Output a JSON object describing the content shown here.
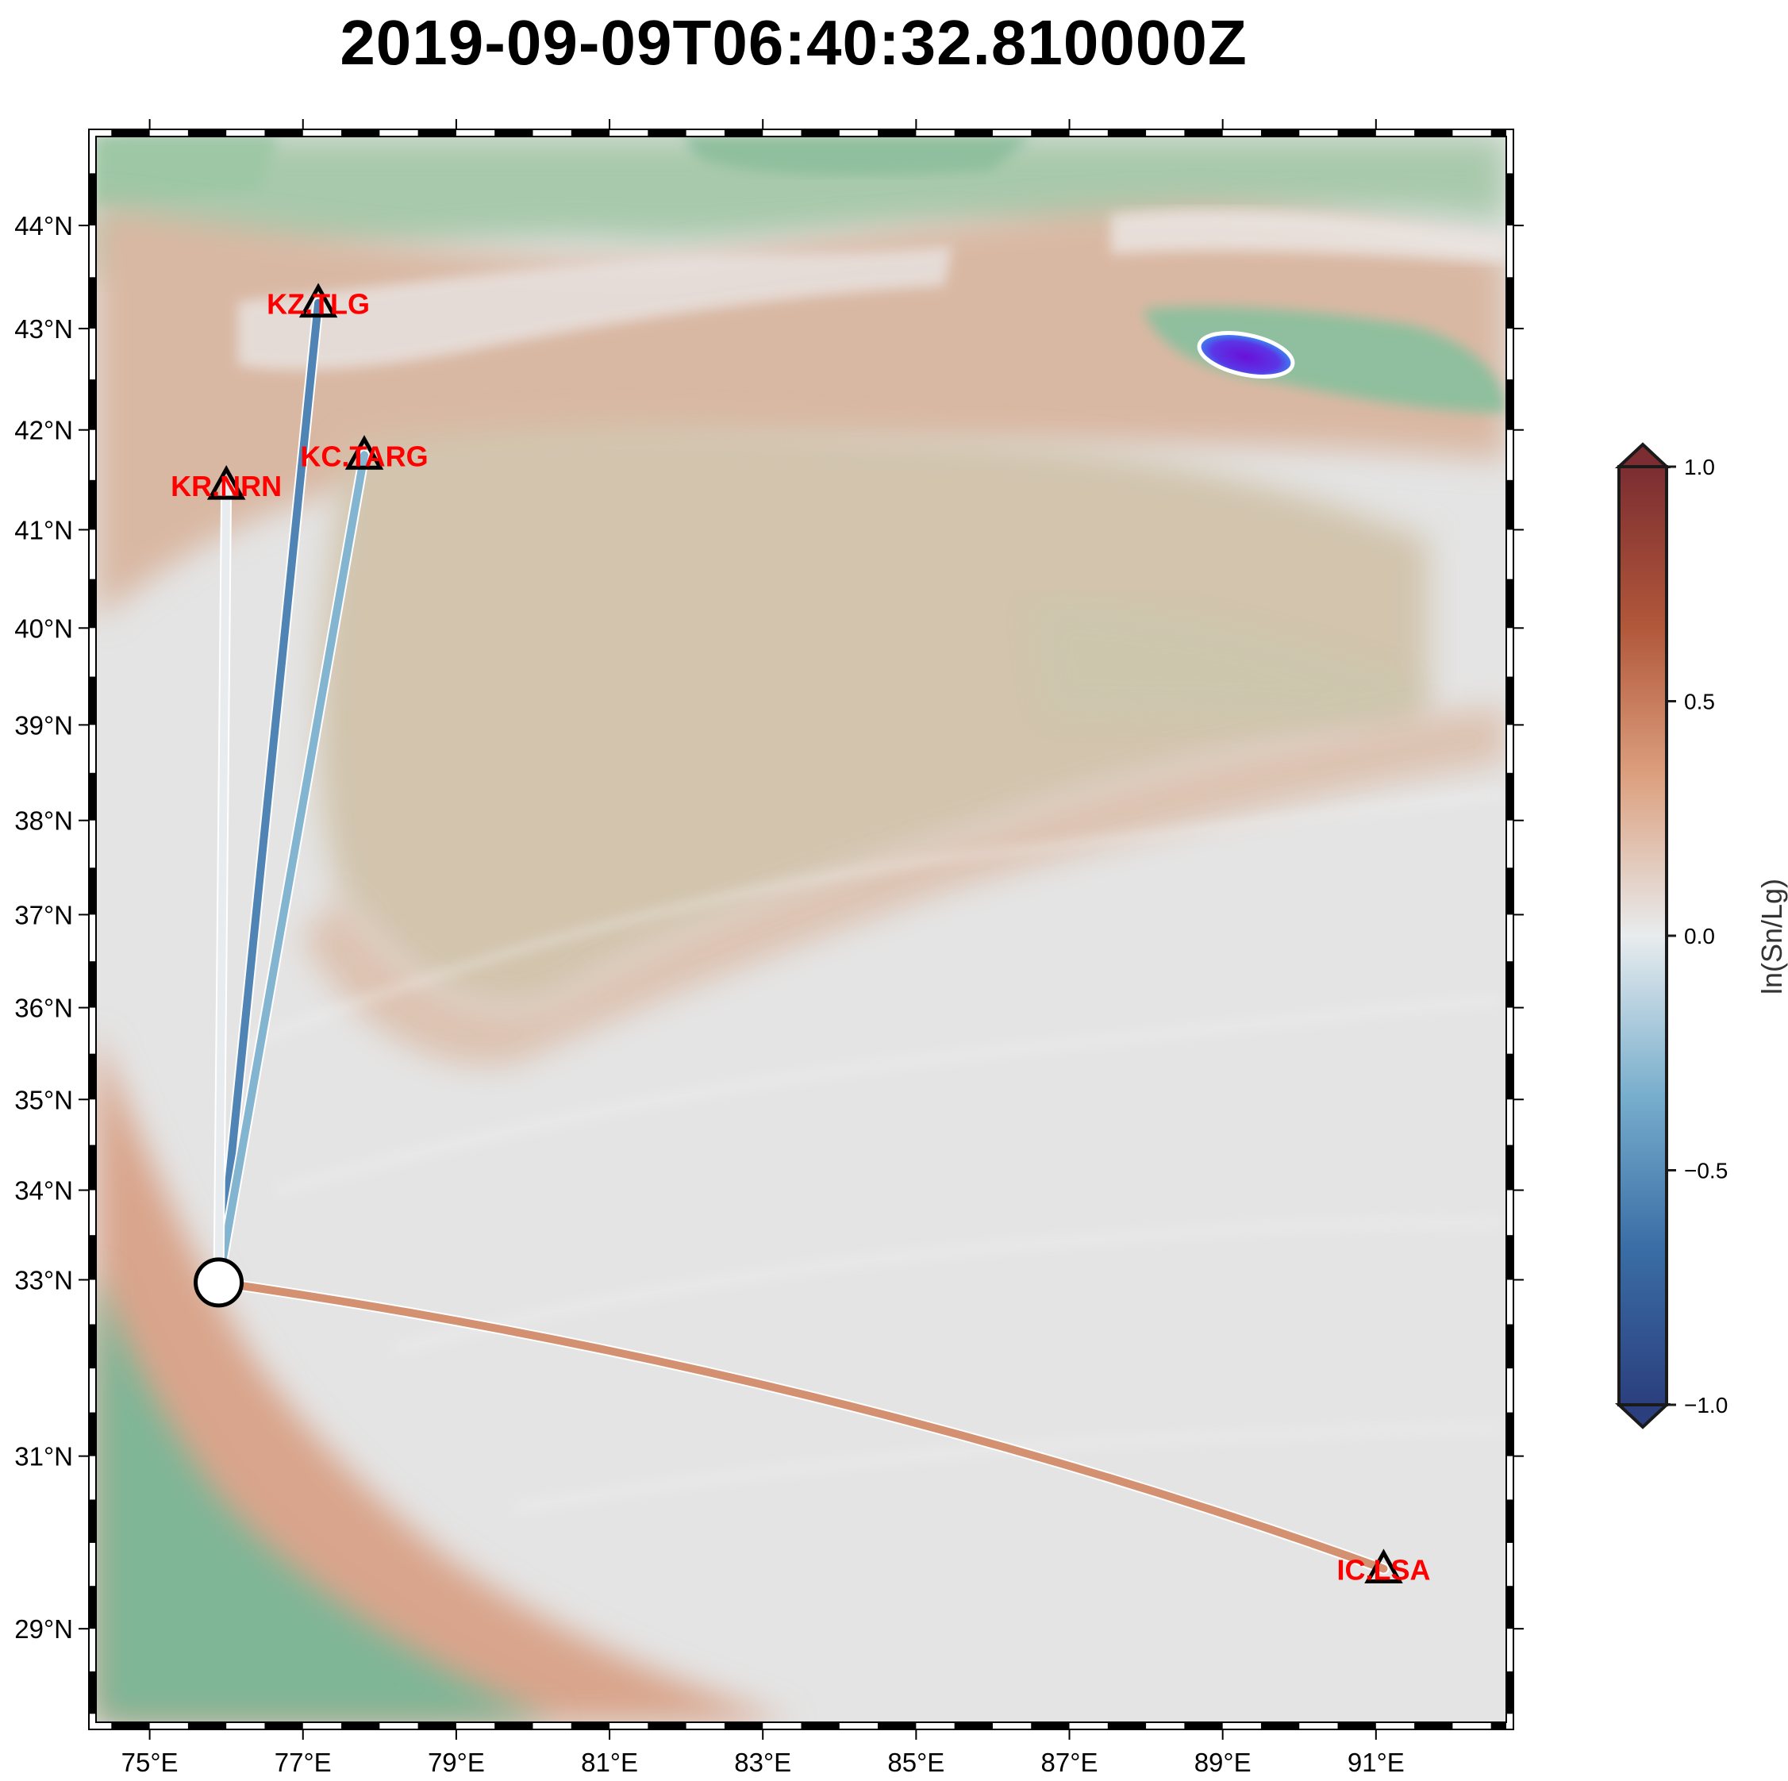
{
  "title": "2019-09-09T06:40:32.810000Z",
  "map": {
    "lon_range": [
      74.3,
      92.7
    ],
    "lat_range": [
      27.9,
      44.85
    ],
    "lon_ticks": [
      {
        "value": 75,
        "label": "75°E"
      },
      {
        "value": 77,
        "label": "77°E"
      },
      {
        "value": 79,
        "label": "79°E"
      },
      {
        "value": 81,
        "label": "81°E"
      },
      {
        "value": 83,
        "label": "83°E"
      },
      {
        "value": 85,
        "label": "85°E"
      },
      {
        "value": 87,
        "label": "87°E"
      },
      {
        "value": 89,
        "label": "89°E"
      },
      {
        "value": 91,
        "label": "91°E"
      }
    ],
    "lat_ticks": [
      {
        "value": 29,
        "label": "29°N"
      },
      {
        "value": 31,
        "label": "31°N"
      },
      {
        "value": 33,
        "label": "33°N"
      },
      {
        "value": 34,
        "label": "34°N"
      },
      {
        "value": 35,
        "label": "35°N"
      },
      {
        "value": 36,
        "label": "36°N"
      },
      {
        "value": 37,
        "label": "37°N"
      },
      {
        "value": 38,
        "label": "38°N"
      },
      {
        "value": 39,
        "label": "39°N"
      },
      {
        "value": 40,
        "label": "40°N"
      },
      {
        "value": 41,
        "label": "41°N"
      },
      {
        "value": 42,
        "label": "42°N"
      },
      {
        "value": 43,
        "label": "43°N"
      },
      {
        "value": 44,
        "label": "44°N"
      }
    ],
    "event": {
      "lon": 75.9,
      "lat": 32.97
    },
    "stations": [
      {
        "code": "KZ.TLG",
        "lon": 77.2,
        "lat": 43.25,
        "value": -0.55
      },
      {
        "code": "KC.TARG",
        "lon": 77.8,
        "lat": 41.75,
        "value": -0.3
      },
      {
        "code": "KR.NRN",
        "lon": 76.0,
        "lat": 41.45,
        "value": 0.0
      },
      {
        "code": "IC.LSA",
        "lon": 91.1,
        "lat": 29.7,
        "value": 0.4
      }
    ]
  },
  "colorbar": {
    "label": "ln(Sn/Lg)",
    "min": -1.0,
    "max": 1.0,
    "ticks": [
      {
        "value": 1.0,
        "label": "1.0"
      },
      {
        "value": 0.5,
        "label": "0.5"
      },
      {
        "value": 0.0,
        "label": "0.0"
      },
      {
        "value": -0.5,
        "label": "−0.5"
      },
      {
        "value": -1.0,
        "label": "−1.0"
      }
    ],
    "colors": [
      "#2b3f7e",
      "#3b6ea6",
      "#78aecd",
      "#e8ecee",
      "#dca07f",
      "#b1573a",
      "#7b2d31"
    ]
  }
}
